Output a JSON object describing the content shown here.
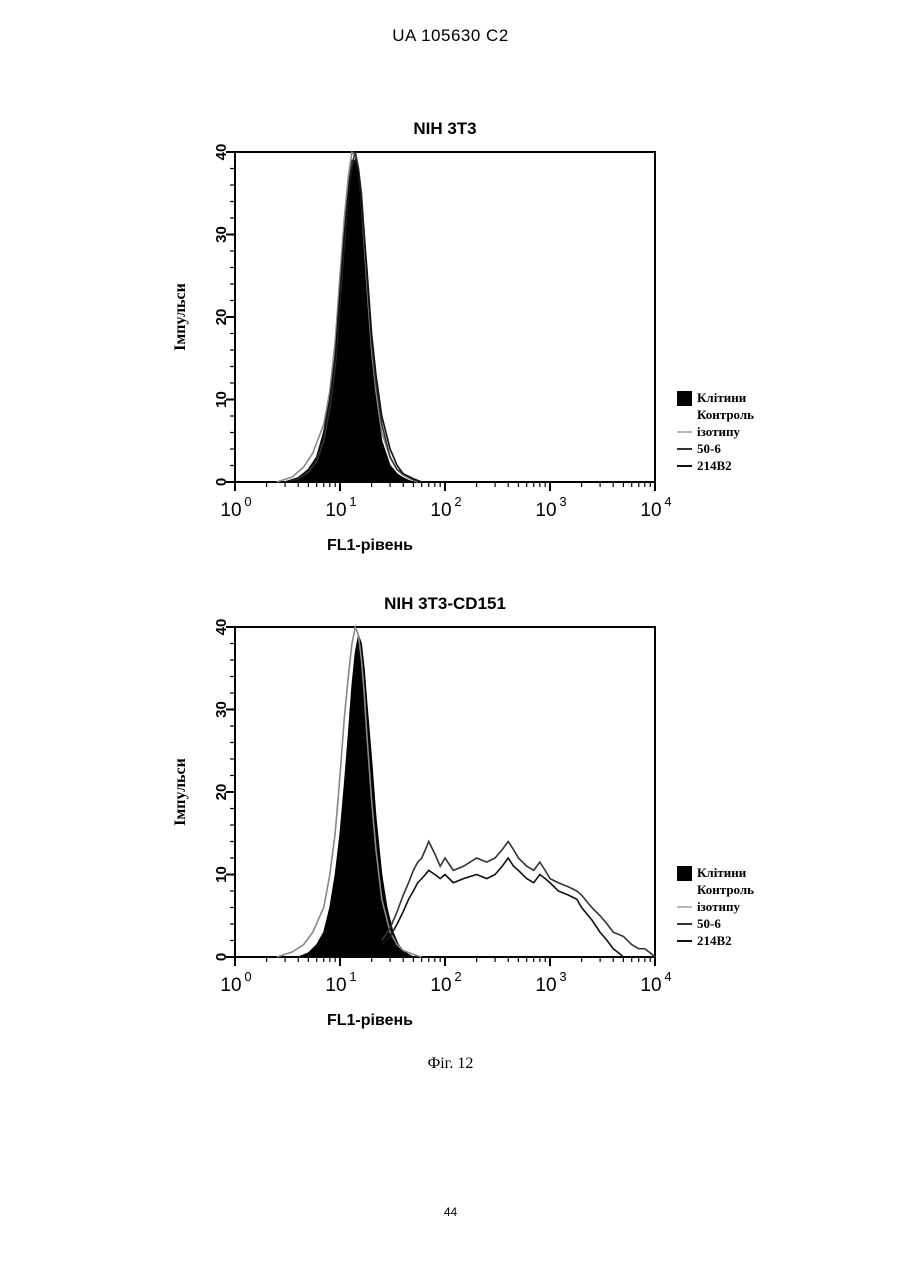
{
  "header": {
    "text": "UA   105630   C2"
  },
  "figure": {
    "caption": "Фіг. 12"
  },
  "page": {
    "number": "44"
  },
  "chart_data": [
    {
      "type": "line",
      "title": "NIH 3T3",
      "xlabel": "FL1-рівень",
      "ylabel": "Імпульси",
      "xscale": "log",
      "xlim": [
        1,
        10000
      ],
      "ylim": [
        0,
        40
      ],
      "yticks": [
        0,
        10,
        20,
        30,
        40
      ],
      "xticks": [
        {
          "value": 1,
          "base": "10",
          "exp": "0"
        },
        {
          "value": 10,
          "base": "10",
          "exp": "1"
        },
        {
          "value": 100,
          "base": "10",
          "exp": "2"
        },
        {
          "value": 1000,
          "base": "10",
          "exp": "3"
        },
        {
          "value": 10000,
          "base": "10",
          "exp": "4"
        }
      ],
      "legend_position": "right",
      "legend": [
        "Клітини",
        "Контроль",
        "ізотипу",
        "50-6",
        "214B2"
      ],
      "series": [
        {
          "name": "Клітини",
          "style": "filled",
          "color": "#000000",
          "x": [
            3,
            4,
            5,
            6,
            7,
            8,
            9,
            10,
            11,
            12,
            13,
            14,
            15,
            16,
            17,
            18,
            20,
            22,
            25,
            30,
            35,
            40,
            45,
            50
          ],
          "y": [
            0,
            0.5,
            1.5,
            3,
            6,
            10,
            16,
            24,
            31,
            36,
            39,
            39,
            37,
            33,
            28,
            23,
            15,
            10,
            5,
            2,
            1,
            0.5,
            0.2,
            0
          ]
        },
        {
          "name": "Контроль ізотипу",
          "style": "line",
          "color": "#888888",
          "x": [
            2.5,
            3.5,
            4.5,
            5.5,
            7,
            8,
            9,
            10,
            11,
            12,
            13,
            14,
            15,
            16,
            17,
            18,
            20,
            22,
            25,
            30,
            35,
            40,
            48,
            55
          ],
          "y": [
            0,
            0.6,
            1.8,
            3.5,
            7,
            11,
            17,
            25,
            32,
            37,
            40,
            39.5,
            38,
            34,
            29,
            24,
            16,
            11,
            6,
            3,
            1.5,
            0.8,
            0.3,
            0
          ]
        },
        {
          "name": "50-6",
          "style": "line",
          "color": "#333333",
          "x": [
            3,
            4,
            5,
            6,
            7,
            8,
            9,
            10,
            11,
            12,
            13,
            14,
            15,
            16,
            17,
            18,
            20,
            22,
            25,
            30,
            35,
            40,
            50,
            60
          ],
          "y": [
            0,
            0.4,
            1.2,
            2.5,
            5,
            9,
            14,
            22,
            29,
            35,
            38.5,
            40,
            38,
            35,
            30,
            25,
            17,
            12,
            7,
            3,
            1.5,
            1,
            0.3,
            0
          ]
        },
        {
          "name": "214B2",
          "style": "line",
          "color": "#111111",
          "x": [
            3,
            4,
            5,
            6,
            7,
            8,
            9,
            10,
            11,
            12,
            13,
            14,
            15,
            16,
            17,
            18,
            20,
            22,
            25,
            30,
            35,
            40,
            50,
            60
          ],
          "y": [
            0,
            0.5,
            1.5,
            3,
            6,
            10,
            15,
            23,
            30,
            35,
            38,
            39,
            37.5,
            34,
            30,
            26,
            18,
            13,
            8,
            4,
            2,
            1,
            0.4,
            0
          ]
        }
      ]
    },
    {
      "type": "line",
      "title": "NIH 3T3-CD151",
      "xlabel": "FL1-рівень",
      "ylabel": "Імпульси",
      "xscale": "log",
      "xlim": [
        1,
        10000
      ],
      "ylim": [
        0,
        40
      ],
      "yticks": [
        0,
        10,
        20,
        30,
        40
      ],
      "xticks": [
        {
          "value": 1,
          "base": "10",
          "exp": "0"
        },
        {
          "value": 10,
          "base": "10",
          "exp": "1"
        },
        {
          "value": 100,
          "base": "10",
          "exp": "2"
        },
        {
          "value": 1000,
          "base": "10",
          "exp": "3"
        },
        {
          "value": 10000,
          "base": "10",
          "exp": "4"
        }
      ],
      "legend_position": "right",
      "legend": [
        "Клітини",
        "Контроль",
        "ізотипу",
        "50-6",
        "214B2"
      ],
      "series": [
        {
          "name": "Клітини",
          "style": "filled",
          "color": "#000000",
          "x": [
            4,
            5,
            6,
            7,
            8,
            9,
            10,
            11,
            12,
            13,
            14,
            15,
            16,
            17,
            18,
            20,
            22,
            25,
            28,
            32,
            36,
            40,
            45,
            50
          ],
          "y": [
            0,
            0.5,
            1.5,
            3,
            6,
            10,
            15,
            21,
            27,
            33,
            37,
            39,
            38,
            35,
            31,
            24,
            17,
            10,
            6,
            3,
            1.5,
            0.8,
            0.3,
            0
          ]
        },
        {
          "name": "Контроль ізотипу",
          "style": "line",
          "color": "#888888",
          "x": [
            2.5,
            3.5,
            4.5,
            5.5,
            7,
            8,
            9,
            10,
            11,
            12,
            13,
            14,
            15,
            16,
            17,
            18,
            20,
            22,
            25,
            30,
            35,
            40,
            50,
            60
          ],
          "y": [
            0,
            0.6,
            1.5,
            3,
            6,
            10,
            15,
            22,
            29,
            34,
            38,
            40,
            39,
            36,
            32,
            27,
            19,
            13,
            7,
            3,
            1.5,
            0.8,
            0.3,
            0
          ]
        },
        {
          "name": "50-6",
          "style": "line",
          "color": "#333333",
          "x": [
            25,
            30,
            35,
            40,
            45,
            50,
            55,
            60,
            65,
            70,
            80,
            90,
            100,
            120,
            150,
            200,
            250,
            300,
            350,
            400,
            450,
            500,
            600,
            700,
            800,
            900,
            1000,
            1200,
            1500,
            1800,
            2000,
            2500,
            3000,
            3500,
            4000,
            5000,
            6000,
            7000,
            8000,
            9000,
            10000
          ],
          "y": [
            2,
            3.5,
            5.5,
            7.5,
            9,
            10.5,
            11.5,
            12,
            13,
            14,
            12.5,
            11,
            12,
            10.5,
            11,
            12,
            11.5,
            12,
            13,
            14,
            13,
            12,
            11,
            10.5,
            11.5,
            10.5,
            9.5,
            9,
            8.5,
            8,
            7.5,
            6,
            5,
            4,
            3,
            2.5,
            1.5,
            1,
            1,
            0.5,
            0
          ]
        },
        {
          "name": "214B2",
          "style": "line",
          "color": "#111111",
          "x": [
            25,
            30,
            35,
            40,
            45,
            50,
            55,
            60,
            65,
            70,
            80,
            90,
            100,
            120,
            150,
            200,
            250,
            300,
            350,
            400,
            450,
            500,
            600,
            700,
            800,
            900,
            1000,
            1200,
            1500,
            1800,
            2000,
            2500,
            3000,
            3500,
            4000,
            4500,
            5000
          ],
          "y": [
            1.5,
            2.5,
            4,
            5.5,
            7,
            8,
            9,
            9.5,
            10,
            10.5,
            10,
            9.5,
            10,
            9,
            9.5,
            10,
            9.5,
            10,
            11,
            12,
            11,
            10.5,
            9.5,
            9,
            10,
            9.5,
            9,
            8,
            7.5,
            7,
            6,
            4.5,
            3,
            2,
            1,
            0.5,
            0
          ]
        }
      ]
    }
  ]
}
